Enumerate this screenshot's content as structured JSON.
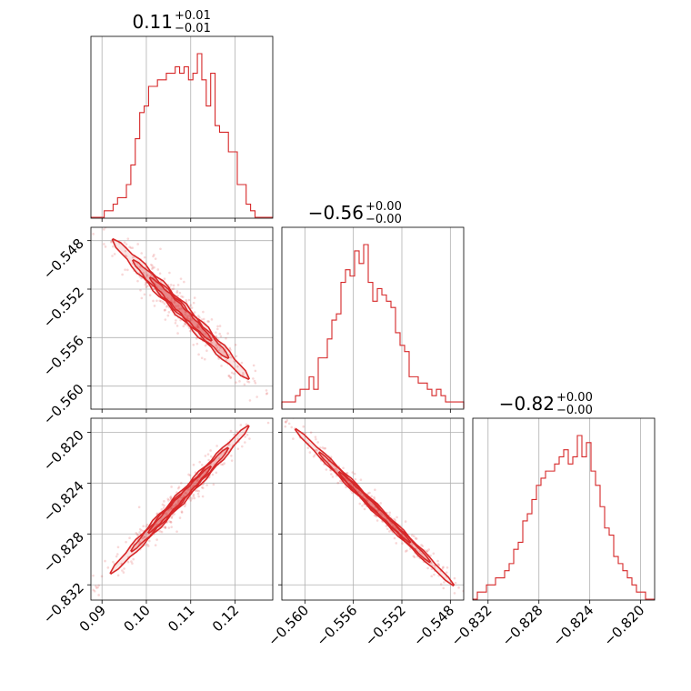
{
  "chart_data": {
    "type": "corner",
    "color": "#d62728",
    "parameters": [
      {
        "title": "0.11",
        "err_plus": "+0.01",
        "err_minus": "−0.01",
        "range": [
          0.0875,
          0.1285
        ],
        "ticks": [
          0.09,
          0.1,
          0.11,
          0.12
        ],
        "tick_labels": [
          "0.09",
          "0.10",
          "0.11",
          "0.12"
        ]
      },
      {
        "title": "−0.56",
        "err_plus": "+0.00",
        "err_minus": "−0.00",
        "range": [
          -0.5619,
          -0.5469
        ],
        "ticks": [
          -0.56,
          -0.556,
          -0.552,
          -0.548
        ],
        "tick_labels": [
          "−0.560",
          "−0.556",
          "−0.552",
          "−0.548"
        ]
      },
      {
        "title": "−0.82",
        "err_plus": "+0.00",
        "err_minus": "−0.00",
        "range": [
          -0.8332,
          -0.8189
        ],
        "ticks": [
          -0.832,
          -0.828,
          -0.824,
          -0.82
        ],
        "tick_labels": [
          "−0.832",
          "−0.828",
          "−0.824",
          "−0.820"
        ]
      }
    ],
    "histograms": [
      [
        0,
        0,
        0,
        1,
        1,
        2,
        3,
        3,
        5,
        8,
        12,
        16,
        17,
        20,
        20,
        21,
        21,
        22,
        22,
        23,
        22,
        23,
        21,
        22,
        25,
        21,
        17,
        22,
        14,
        13,
        13,
        10,
        10,
        5,
        5,
        2,
        1,
        0,
        0,
        0,
        0
      ],
      [
        1,
        1,
        1,
        2,
        3,
        3,
        5,
        3,
        8,
        8,
        11,
        14,
        15,
        20,
        22,
        21,
        25,
        23,
        26,
        20,
        17,
        19,
        18,
        17,
        16,
        12,
        10,
        9,
        5,
        5,
        4,
        4,
        3,
        2,
        3,
        2,
        1,
        1,
        1,
        1
      ],
      [
        0,
        1,
        1,
        2,
        2,
        3,
        3,
        4,
        5,
        7,
        8,
        11,
        12,
        14,
        16,
        17,
        18,
        18,
        19,
        20,
        21,
        19,
        20,
        23,
        20,
        22,
        18,
        16,
        13,
        10,
        9,
        6,
        5,
        4,
        3,
        2,
        1,
        1,
        0,
        0
      ]
    ],
    "pair_1_0": {
      "x_range": [
        0.0895,
        0.126
      ],
      "y_range": [
        -0.5468,
        -0.5605
      ],
      "width_frac": 0.025
    },
    "pair_2_0": {
      "x_range": [
        0.089,
        0.126
      ],
      "y_range": [
        -0.8322,
        -0.8184
      ],
      "width_frac": 0.018
    },
    "pair_2_1": {
      "x_range": [
        -0.562,
        -0.5465
      ],
      "y_range": [
        -0.8186,
        -0.8332
      ],
      "width_frac": 0.012
    },
    "grid": true
  }
}
